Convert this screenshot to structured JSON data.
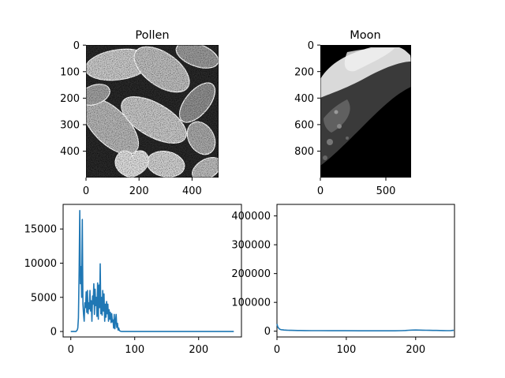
{
  "figure": {
    "line_color": "#1f77b4",
    "background": "#ffffff"
  },
  "chart_data": [
    {
      "type": "image",
      "title": "Pollen",
      "xlim": [
        0,
        500
      ],
      "ylim": [
        500,
        0
      ],
      "xticks": [
        "0",
        "200",
        "400"
      ],
      "xtick_values": [
        0,
        200,
        400
      ],
      "yticks": [
        "0",
        "100",
        "200",
        "300",
        "400"
      ],
      "ytick_values": [
        0,
        100,
        200,
        300,
        400
      ],
      "colormap": "gray"
    },
    {
      "type": "image",
      "title": "Moon",
      "xlim": [
        0,
        700
      ],
      "ylim": [
        1000,
        0
      ],
      "xticks": [
        "0",
        "500"
      ],
      "xtick_values": [
        0,
        500
      ],
      "yticks": [
        "0",
        "200",
        "400",
        "600",
        "800"
      ],
      "ytick_values": [
        0,
        200,
        400,
        600,
        800
      ],
      "colormap": "gray"
    },
    {
      "type": "line",
      "title": "",
      "xlim": [
        -12,
        267
      ],
      "ylim": [
        -800,
        18600
      ],
      "xticks": [
        "0",
        "100",
        "200"
      ],
      "xtick_values": [
        0,
        100,
        200
      ],
      "yticks": [
        "0",
        "5000",
        "10000",
        "15000"
      ],
      "ytick_values": [
        0,
        5000,
        10000,
        15000
      ],
      "series": [
        {
          "x": [
            0,
            8,
            10,
            11,
            12,
            13,
            14,
            15,
            16,
            17,
            18,
            19,
            20,
            21,
            22,
            23,
            24,
            25,
            26,
            27,
            28,
            29,
            30,
            31,
            32,
            33,
            34,
            35,
            36,
            37,
            38,
            39,
            40,
            41,
            42,
            43,
            44,
            45,
            46,
            47,
            48,
            49,
            50,
            51,
            52,
            53,
            54,
            55,
            56,
            57,
            58,
            59,
            60,
            61,
            62,
            63,
            64,
            65,
            66,
            67,
            68,
            69,
            70,
            71,
            72,
            73,
            74,
            75,
            76,
            77,
            78,
            80,
            255
          ],
          "y": [
            0,
            0,
            200,
            500,
            2000,
            9000,
            17700,
            7000,
            9500,
            5000,
            16400,
            4000,
            2500,
            1500,
            4200,
            3500,
            5800,
            2800,
            6000,
            2600,
            4200,
            3300,
            6000,
            3000,
            4500,
            1500,
            5200,
            4000,
            7000,
            2500,
            6200,
            3800,
            5000,
            2200,
            7100,
            1800,
            6800,
            3500,
            9900,
            2600,
            5000,
            2400,
            6000,
            3000,
            5500,
            1500,
            4000,
            2100,
            4400,
            2600,
            4000,
            1500,
            3200,
            1800,
            2800,
            1300,
            2600,
            1400,
            1700,
            500,
            2500,
            400,
            1500,
            2500,
            600,
            1200,
            200,
            500,
            150,
            80,
            30,
            0,
            0
          ]
        }
      ]
    },
    {
      "type": "line",
      "title": "",
      "xlim": [
        0,
        256
      ],
      "ylim": [
        -20000,
        440000
      ],
      "xticks": [
        "0",
        "100",
        "200"
      ],
      "xtick_values": [
        0,
        100,
        200
      ],
      "yticks": [
        "0",
        "100000",
        "200000",
        "300000",
        "400000"
      ],
      "ytick_values": [
        0,
        100000,
        200000,
        300000,
        400000
      ],
      "series": [
        {
          "x": [
            0,
            1,
            2,
            3,
            4,
            5,
            6,
            8,
            10,
            12,
            14,
            16,
            18,
            20,
            25,
            30,
            40,
            50,
            60,
            80,
            100,
            120,
            140,
            160,
            170,
            180,
            185,
            190,
            195,
            200,
            205,
            210,
            215,
            220,
            225,
            230,
            235,
            240,
            245,
            250,
            253,
            255
          ],
          "y": [
            25000,
            16000,
            12000,
            9000,
            7000,
            6000,
            5200,
            4800,
            4000,
            3700,
            3500,
            3300,
            3100,
            2900,
            2700,
            2500,
            2200,
            2000,
            1900,
            1700,
            1500,
            1400,
            1300,
            1300,
            1400,
            1800,
            2500,
            3400,
            3800,
            4000,
            3800,
            3600,
            3300,
            3000,
            2800,
            2600,
            2400,
            2200,
            2000,
            1800,
            2600,
            3000
          ]
        }
      ]
    }
  ]
}
